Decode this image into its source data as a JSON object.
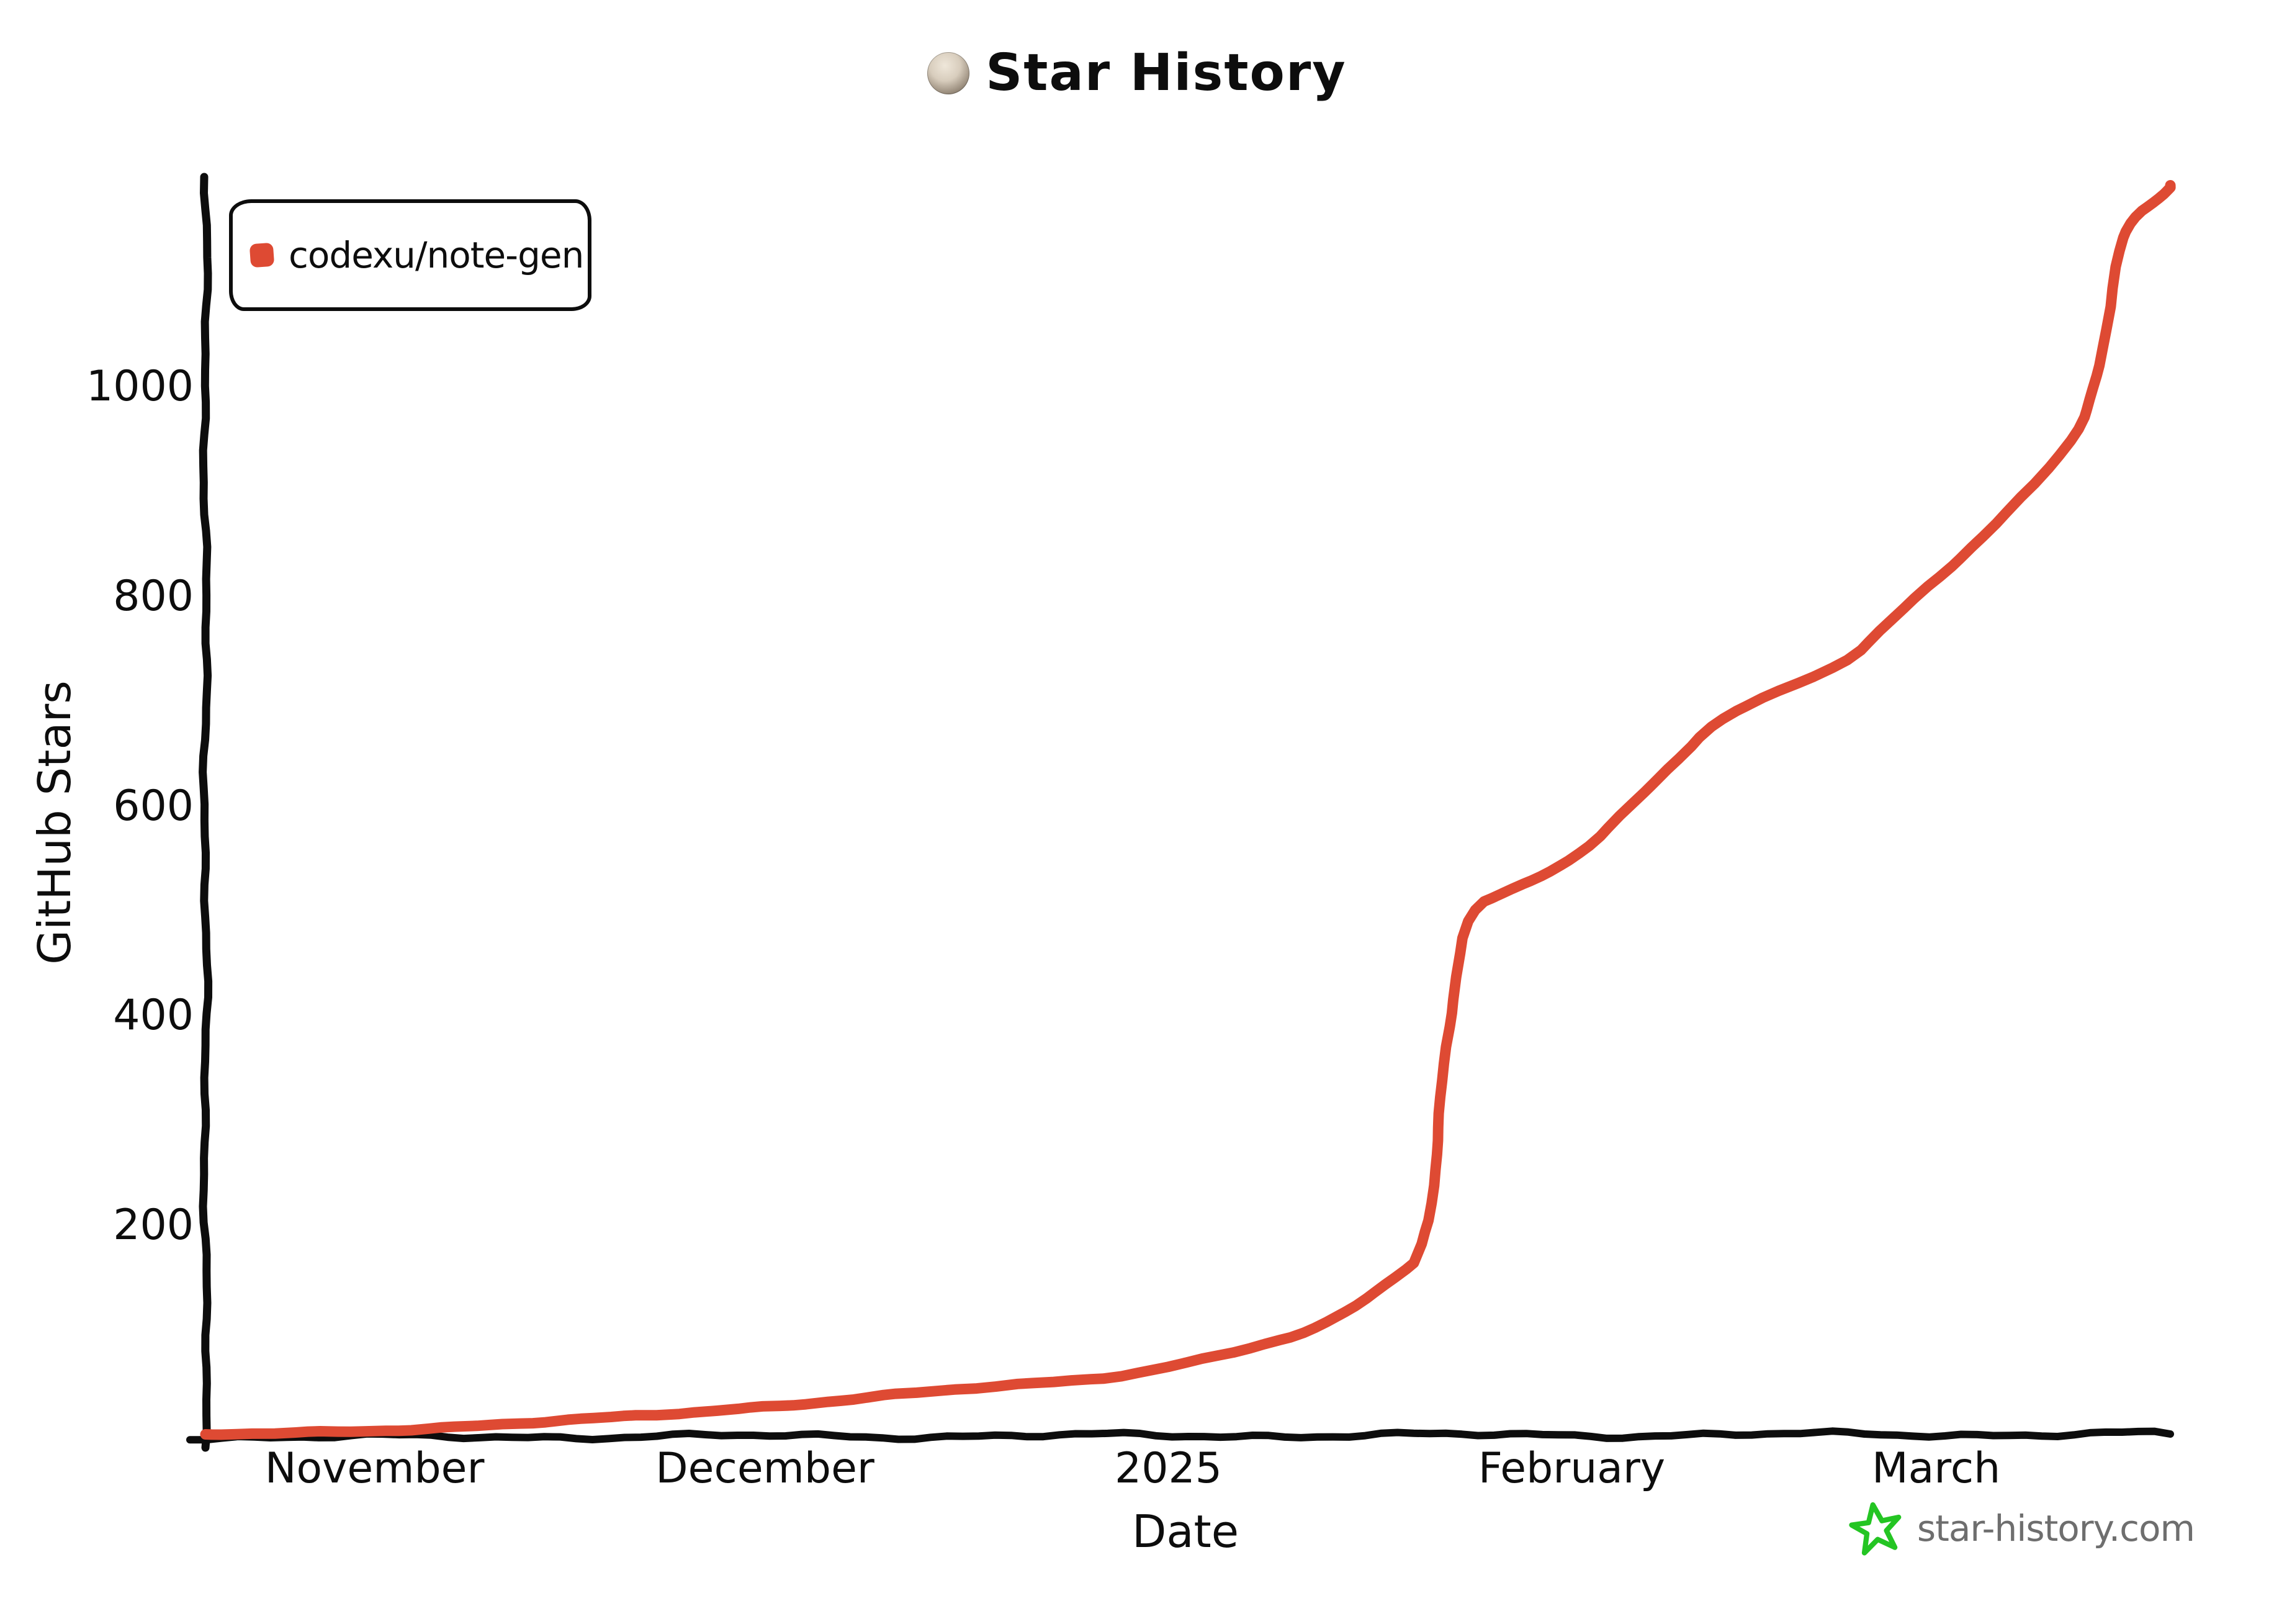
{
  "header": {
    "title": "Star History"
  },
  "legend": {
    "series_label": "codexu/note-gen"
  },
  "watermark": {
    "text": "star-history.com"
  },
  "colors": {
    "series": "#de4a33",
    "axis": "#0d0d0d",
    "watermark_text": "#6e6e6e",
    "watermark_star": "#24c523"
  },
  "chart_data": {
    "type": "line",
    "title": "Star History",
    "xlabel": "Date",
    "ylabel": "GitHub Stars",
    "grid": false,
    "legend_position": "top-left",
    "ylim": [
      0,
      1200
    ],
    "xlim": [
      "2024-10-19",
      "2025-03-19"
    ],
    "y_ticks": [
      200,
      400,
      600,
      800,
      1000
    ],
    "x_ticks": [
      {
        "date": "2024-11-01",
        "label": "November"
      },
      {
        "date": "2024-12-01",
        "label": "December"
      },
      {
        "date": "2025-01-01",
        "label": "2025"
      },
      {
        "date": "2025-02-01",
        "label": "February"
      },
      {
        "date": "2025-03-01",
        "label": "March"
      }
    ],
    "series": [
      {
        "name": "codexu/note-gen",
        "color": "#de4a33",
        "points": [
          [
            "2024-10-19",
            0
          ],
          [
            "2024-10-25",
            2
          ],
          [
            "2024-11-01",
            5
          ],
          [
            "2024-11-08",
            8
          ],
          [
            "2024-11-15",
            13
          ],
          [
            "2024-11-22",
            19
          ],
          [
            "2024-11-28",
            25
          ],
          [
            "2024-12-05",
            31
          ],
          [
            "2024-12-12",
            39
          ],
          [
            "2024-12-18",
            46
          ],
          [
            "2024-12-24",
            52
          ],
          [
            "2024-12-29",
            58
          ],
          [
            "2025-01-03",
            70
          ],
          [
            "2025-01-08",
            85
          ],
          [
            "2025-01-12",
            98
          ],
          [
            "2025-01-15",
            120
          ],
          [
            "2025-01-18",
            148
          ],
          [
            "2025-01-21",
            176
          ],
          [
            "2025-01-22",
            330
          ],
          [
            "2025-01-23",
            430
          ],
          [
            "2025-01-24",
            504
          ],
          [
            "2025-01-27",
            520
          ],
          [
            "2025-01-30",
            535
          ],
          [
            "2025-02-02",
            555
          ],
          [
            "2025-02-05",
            595
          ],
          [
            "2025-02-09",
            640
          ],
          [
            "2025-02-12",
            683
          ],
          [
            "2025-02-16",
            706
          ],
          [
            "2025-02-22",
            735
          ],
          [
            "2025-02-25",
            770
          ],
          [
            "2025-03-01",
            815
          ],
          [
            "2025-03-04",
            850
          ],
          [
            "2025-03-08",
            900
          ],
          [
            "2025-03-12",
            958
          ],
          [
            "2025-03-13",
            990
          ],
          [
            "2025-03-14",
            1040
          ],
          [
            "2025-03-15",
            1130
          ],
          [
            "2025-03-16",
            1160
          ],
          [
            "2025-03-18",
            1180
          ],
          [
            "2025-03-19",
            1192
          ]
        ]
      }
    ]
  }
}
